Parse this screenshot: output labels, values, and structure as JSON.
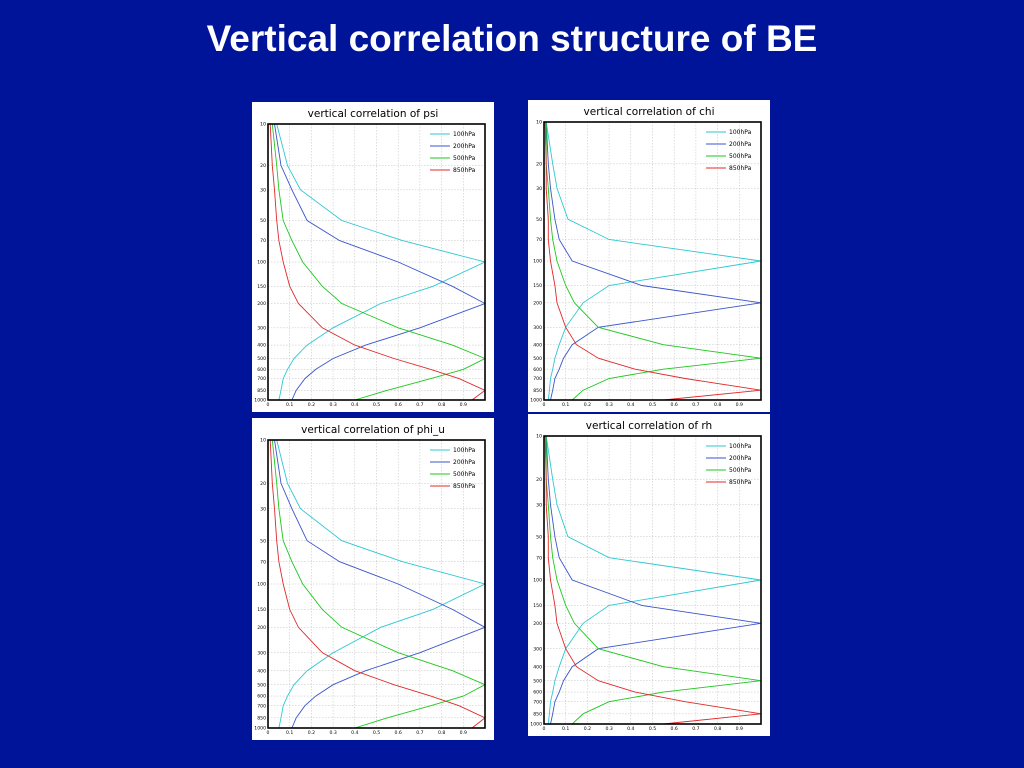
{
  "slide": {
    "title": "Vertical correlation structure of BE"
  },
  "shared": {
    "levels": [
      10,
      20,
      30,
      50,
      70,
      100,
      150,
      200,
      300,
      400,
      500,
      600,
      700,
      850,
      1000
    ],
    "xticks": [
      "0",
      "0.1",
      "0.2",
      "0.3",
      "0.4",
      "0.5",
      "0.6",
      "0.7",
      "0.8",
      "0.9"
    ],
    "legend": [
      {
        "name": "100hPa",
        "color": "#2ec8d2"
      },
      {
        "name": "200hPa",
        "color": "#3a55cc"
      },
      {
        "name": "500hPa",
        "color": "#1ec81e"
      },
      {
        "name": "850hPa",
        "color": "#e02a2a"
      }
    ]
  },
  "chart_data": [
    {
      "type": "line",
      "title": "vertical correlation of psi",
      "xlim": [
        0,
        1
      ],
      "ylabel_scale": "log-pressure (hPa), inverted",
      "grid": true,
      "legend_position": "top-right",
      "series": [
        {
          "name": "100hPa",
          "points": [
            [
              0.04,
              10
            ],
            [
              0.09,
              20
            ],
            [
              0.15,
              30
            ],
            [
              0.34,
              50
            ],
            [
              0.62,
              70
            ],
            [
              1.0,
              100
            ],
            [
              0.76,
              150
            ],
            [
              0.52,
              200
            ],
            [
              0.3,
              300
            ],
            [
              0.18,
              400
            ],
            [
              0.12,
              500
            ],
            [
              0.09,
              600
            ],
            [
              0.07,
              700
            ],
            [
              0.06,
              850
            ],
            [
              0.05,
              1000
            ]
          ]
        },
        {
          "name": "200hPa",
          "points": [
            [
              0.03,
              10
            ],
            [
              0.06,
              20
            ],
            [
              0.11,
              30
            ],
            [
              0.18,
              50
            ],
            [
              0.33,
              70
            ],
            [
              0.6,
              100
            ],
            [
              0.85,
              150
            ],
            [
              1.0,
              200
            ],
            [
              0.7,
              300
            ],
            [
              0.45,
              400
            ],
            [
              0.3,
              500
            ],
            [
              0.22,
              600
            ],
            [
              0.17,
              700
            ],
            [
              0.13,
              850
            ],
            [
              0.11,
              1000
            ]
          ]
        },
        {
          "name": "500hPa",
          "points": [
            [
              0.02,
              10
            ],
            [
              0.04,
              20
            ],
            [
              0.05,
              30
            ],
            [
              0.07,
              50
            ],
            [
              0.11,
              70
            ],
            [
              0.16,
              100
            ],
            [
              0.25,
              150
            ],
            [
              0.34,
              200
            ],
            [
              0.6,
              300
            ],
            [
              0.85,
              400
            ],
            [
              1.0,
              500
            ],
            [
              0.9,
              600
            ],
            [
              0.75,
              700
            ],
            [
              0.55,
              850
            ],
            [
              0.4,
              1000
            ]
          ]
        },
        {
          "name": "850hPa",
          "points": [
            [
              0.01,
              10
            ],
            [
              0.02,
              20
            ],
            [
              0.03,
              30
            ],
            [
              0.04,
              50
            ],
            [
              0.05,
              70
            ],
            [
              0.07,
              100
            ],
            [
              0.1,
              150
            ],
            [
              0.14,
              200
            ],
            [
              0.25,
              300
            ],
            [
              0.4,
              400
            ],
            [
              0.58,
              500
            ],
            [
              0.75,
              600
            ],
            [
              0.88,
              700
            ],
            [
              1.0,
              850
            ],
            [
              0.94,
              1000
            ]
          ]
        }
      ]
    },
    {
      "type": "line",
      "title": "vertical correlation of chi",
      "xlim": [
        0,
        1
      ],
      "ylabel_scale": "log-pressure (hPa), inverted",
      "grid": true,
      "legend_position": "top-right",
      "series": [
        {
          "name": "100hPa",
          "points": [
            [
              0.01,
              10
            ],
            [
              0.04,
              20
            ],
            [
              0.06,
              30
            ],
            [
              0.11,
              50
            ],
            [
              0.3,
              70
            ],
            [
              1.0,
              100
            ],
            [
              0.3,
              150
            ],
            [
              0.18,
              200
            ],
            [
              0.1,
              300
            ],
            [
              0.07,
              400
            ],
            [
              0.05,
              500
            ],
            [
              0.04,
              600
            ],
            [
              0.03,
              700
            ],
            [
              0.025,
              850
            ],
            [
              0.02,
              1000
            ]
          ]
        },
        {
          "name": "200hPa",
          "points": [
            [
              0.01,
              10
            ],
            [
              0.02,
              20
            ],
            [
              0.03,
              30
            ],
            [
              0.05,
              50
            ],
            [
              0.07,
              70
            ],
            [
              0.13,
              100
            ],
            [
              0.45,
              150
            ],
            [
              1.0,
              200
            ],
            [
              0.25,
              300
            ],
            [
              0.13,
              400
            ],
            [
              0.09,
              500
            ],
            [
              0.07,
              600
            ],
            [
              0.05,
              700
            ],
            [
              0.04,
              850
            ],
            [
              0.03,
              1000
            ]
          ]
        },
        {
          "name": "500hPa",
          "points": [
            [
              0.01,
              10
            ],
            [
              0.01,
              20
            ],
            [
              0.02,
              30
            ],
            [
              0.03,
              50
            ],
            [
              0.04,
              70
            ],
            [
              0.06,
              100
            ],
            [
              0.1,
              150
            ],
            [
              0.14,
              200
            ],
            [
              0.25,
              300
            ],
            [
              0.55,
              400
            ],
            [
              1.0,
              500
            ],
            [
              0.55,
              600
            ],
            [
              0.3,
              700
            ],
            [
              0.18,
              850
            ],
            [
              0.13,
              1000
            ]
          ]
        },
        {
          "name": "850hPa",
          "points": [
            [
              0.005,
              10
            ],
            [
              0.01,
              20
            ],
            [
              0.01,
              30
            ],
            [
              0.02,
              50
            ],
            [
              0.02,
              70
            ],
            [
              0.03,
              100
            ],
            [
              0.05,
              150
            ],
            [
              0.06,
              200
            ],
            [
              0.1,
              300
            ],
            [
              0.15,
              400
            ],
            [
              0.25,
              500
            ],
            [
              0.42,
              600
            ],
            [
              0.65,
              700
            ],
            [
              1.0,
              850
            ],
            [
              0.55,
              1000
            ]
          ]
        }
      ]
    },
    {
      "type": "line",
      "title": "vertical correlation of phi_u",
      "xlim": [
        0,
        1
      ],
      "ylabel_scale": "log-pressure (hPa), inverted",
      "grid": true,
      "legend_position": "top-right",
      "series": [
        {
          "name": "100hPa",
          "points": [
            [
              0.04,
              10
            ],
            [
              0.09,
              20
            ],
            [
              0.15,
              30
            ],
            [
              0.34,
              50
            ],
            [
              0.62,
              70
            ],
            [
              1.0,
              100
            ],
            [
              0.76,
              150
            ],
            [
              0.52,
              200
            ],
            [
              0.3,
              300
            ],
            [
              0.18,
              400
            ],
            [
              0.12,
              500
            ],
            [
              0.09,
              600
            ],
            [
              0.07,
              700
            ],
            [
              0.06,
              850
            ],
            [
              0.05,
              1000
            ]
          ]
        },
        {
          "name": "200hPa",
          "points": [
            [
              0.03,
              10
            ],
            [
              0.06,
              20
            ],
            [
              0.11,
              30
            ],
            [
              0.18,
              50
            ],
            [
              0.33,
              70
            ],
            [
              0.6,
              100
            ],
            [
              0.85,
              150
            ],
            [
              1.0,
              200
            ],
            [
              0.7,
              300
            ],
            [
              0.45,
              400
            ],
            [
              0.3,
              500
            ],
            [
              0.22,
              600
            ],
            [
              0.17,
              700
            ],
            [
              0.13,
              850
            ],
            [
              0.11,
              1000
            ]
          ]
        },
        {
          "name": "500hPa",
          "points": [
            [
              0.02,
              10
            ],
            [
              0.04,
              20
            ],
            [
              0.05,
              30
            ],
            [
              0.07,
              50
            ],
            [
              0.11,
              70
            ],
            [
              0.16,
              100
            ],
            [
              0.25,
              150
            ],
            [
              0.34,
              200
            ],
            [
              0.6,
              300
            ],
            [
              0.85,
              400
            ],
            [
              1.0,
              500
            ],
            [
              0.9,
              600
            ],
            [
              0.75,
              700
            ],
            [
              0.55,
              850
            ],
            [
              0.4,
              1000
            ]
          ]
        },
        {
          "name": "850hPa",
          "points": [
            [
              0.01,
              10
            ],
            [
              0.02,
              20
            ],
            [
              0.03,
              30
            ],
            [
              0.04,
              50
            ],
            [
              0.05,
              70
            ],
            [
              0.07,
              100
            ],
            [
              0.1,
              150
            ],
            [
              0.14,
              200
            ],
            [
              0.25,
              300
            ],
            [
              0.4,
              400
            ],
            [
              0.58,
              500
            ],
            [
              0.75,
              600
            ],
            [
              0.88,
              700
            ],
            [
              1.0,
              850
            ],
            [
              0.94,
              1000
            ]
          ]
        }
      ]
    },
    {
      "type": "line",
      "title": "vertical correlation of rh",
      "xlim": [
        0,
        1
      ],
      "ylabel_scale": "log-pressure (hPa), inverted",
      "grid": true,
      "legend_position": "top-right",
      "series": [
        {
          "name": "100hPa",
          "points": [
            [
              0.01,
              10
            ],
            [
              0.04,
              20
            ],
            [
              0.06,
              30
            ],
            [
              0.11,
              50
            ],
            [
              0.3,
              70
            ],
            [
              1.0,
              100
            ],
            [
              0.3,
              150
            ],
            [
              0.18,
              200
            ],
            [
              0.1,
              300
            ],
            [
              0.07,
              400
            ],
            [
              0.05,
              500
            ],
            [
              0.04,
              600
            ],
            [
              0.03,
              700
            ],
            [
              0.025,
              850
            ],
            [
              0.02,
              1000
            ]
          ]
        },
        {
          "name": "200hPa",
          "points": [
            [
              0.01,
              10
            ],
            [
              0.02,
              20
            ],
            [
              0.03,
              30
            ],
            [
              0.05,
              50
            ],
            [
              0.07,
              70
            ],
            [
              0.13,
              100
            ],
            [
              0.45,
              150
            ],
            [
              1.0,
              200
            ],
            [
              0.25,
              300
            ],
            [
              0.13,
              400
            ],
            [
              0.09,
              500
            ],
            [
              0.07,
              600
            ],
            [
              0.05,
              700
            ],
            [
              0.04,
              850
            ],
            [
              0.03,
              1000
            ]
          ]
        },
        {
          "name": "500hPa",
          "points": [
            [
              0.01,
              10
            ],
            [
              0.01,
              20
            ],
            [
              0.02,
              30
            ],
            [
              0.03,
              50
            ],
            [
              0.04,
              70
            ],
            [
              0.06,
              100
            ],
            [
              0.1,
              150
            ],
            [
              0.14,
              200
            ],
            [
              0.25,
              300
            ],
            [
              0.55,
              400
            ],
            [
              1.0,
              500
            ],
            [
              0.55,
              600
            ],
            [
              0.3,
              700
            ],
            [
              0.18,
              850
            ],
            [
              0.13,
              1000
            ]
          ]
        },
        {
          "name": "850hPa",
          "points": [
            [
              0.005,
              10
            ],
            [
              0.01,
              20
            ],
            [
              0.01,
              30
            ],
            [
              0.02,
              50
            ],
            [
              0.02,
              70
            ],
            [
              0.03,
              100
            ],
            [
              0.05,
              150
            ],
            [
              0.06,
              200
            ],
            [
              0.1,
              300
            ],
            [
              0.15,
              400
            ],
            [
              0.25,
              500
            ],
            [
              0.42,
              600
            ],
            [
              0.65,
              700
            ],
            [
              1.0,
              850
            ],
            [
              0.55,
              1000
            ]
          ]
        }
      ]
    }
  ]
}
